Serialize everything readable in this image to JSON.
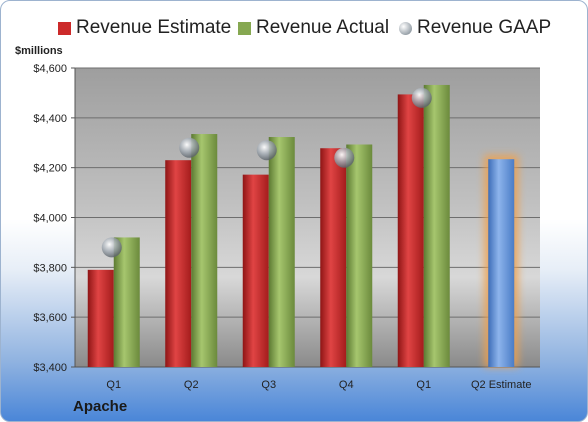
{
  "chart_data": {
    "type": "bar",
    "units_label": "$millions",
    "company": "Apache",
    "categories": [
      "Q1",
      "Q2",
      "Q3",
      "Q4",
      "Q1",
      "Q2 Estimate"
    ],
    "series": [
      {
        "name": "Revenue Estimate",
        "color": "#cc2a2a",
        "values": [
          3790,
          4230,
          4172,
          4278,
          4494,
          null
        ]
      },
      {
        "name": "Revenue Actual",
        "color": "#86a851",
        "values": [
          3920,
          4335,
          4323,
          4293,
          4532,
          null
        ]
      },
      {
        "name": "Revenue GAAP",
        "color": "#9aa3ab",
        "marker": "sphere",
        "values": [
          3880,
          4280,
          4270,
          4240,
          4480,
          null
        ]
      }
    ],
    "forecast": {
      "category": "Q2 Estimate",
      "value": 4234,
      "color": "#5b8fd6",
      "highlight": "#f0a04b"
    },
    "yaxis": {
      "min": 3400,
      "max": 4600,
      "step": 200,
      "tick_labels": [
        "$3,400",
        "$3,600",
        "$3,800",
        "$4,000",
        "$4,200",
        "$4,400",
        "$4,600"
      ]
    },
    "grid": true,
    "legend_position": "top"
  }
}
